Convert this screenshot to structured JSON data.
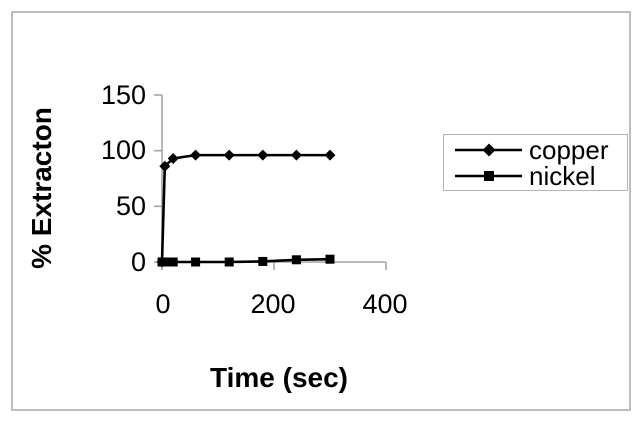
{
  "figure": {
    "background": "#ffffff",
    "frame_border_color": "#bdbdbd",
    "legend_border_color": "#b5b5b5"
  },
  "chart_data": {
    "type": "line",
    "title": "",
    "xlabel": "Time (sec)",
    "ylabel": "% Extracton",
    "xlim": [
      0,
      400
    ],
    "ylim": [
      0,
      150
    ],
    "xticks": [
      0,
      200,
      400
    ],
    "yticks": [
      0,
      50,
      100,
      150
    ],
    "grid": false,
    "legend_position": "right",
    "axis_color": "#a3a3a3",
    "line_color": "#000000",
    "series": [
      {
        "name": "copper",
        "marker": "diamond",
        "x": [
          0,
          5,
          20,
          60,
          120,
          180,
          240,
          300
        ],
        "y": [
          0,
          86,
          93,
          96,
          96,
          96,
          96,
          96
        ]
      },
      {
        "name": "nickel",
        "marker": "square",
        "x": [
          0,
          5,
          20,
          60,
          120,
          180,
          240,
          300
        ],
        "y": [
          0,
          0,
          0,
          0,
          0,
          0.5,
          2,
          2.5
        ]
      }
    ]
  }
}
